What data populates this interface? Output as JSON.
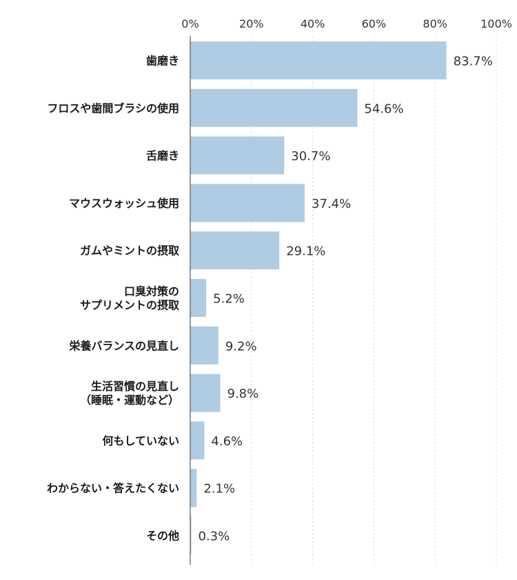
{
  "chart_data": {
    "type": "bar",
    "orientation": "horizontal",
    "title": "",
    "xlabel": "",
    "ylabel": "",
    "xlim": [
      0,
      100
    ],
    "x_ticks": [
      "0%",
      "20%",
      "40%",
      "60%",
      "80%",
      "100%"
    ],
    "x_tick_values": [
      0,
      20,
      40,
      60,
      80,
      100
    ],
    "grid": true,
    "bar_color": "#b0cce3",
    "categories": [
      [
        "歯磨き"
      ],
      [
        "フロスや歯間ブラシの使用"
      ],
      [
        "舌磨き"
      ],
      [
        "マウスウォッシュ使用"
      ],
      [
        "ガムやミントの摂取"
      ],
      [
        "口臭対策の",
        "サプリメントの摂取"
      ],
      [
        "栄養バランスの見直し"
      ],
      [
        "生活習慣の見直し",
        "（睡眠・運動など）"
      ],
      [
        "何もしていない"
      ],
      [
        "わからない・答えたくない"
      ],
      [
        "その他"
      ]
    ],
    "values": [
      83.7,
      54.6,
      30.7,
      37.4,
      29.1,
      5.2,
      9.2,
      9.8,
      4.6,
      2.1,
      0.3
    ],
    "value_labels": [
      "83.7%",
      "54.6%",
      "30.7%",
      "37.4%",
      "29.1%",
      "5.2%",
      "9.2%",
      "9.8%",
      "4.6%",
      "2.1%",
      "0.3%"
    ]
  }
}
